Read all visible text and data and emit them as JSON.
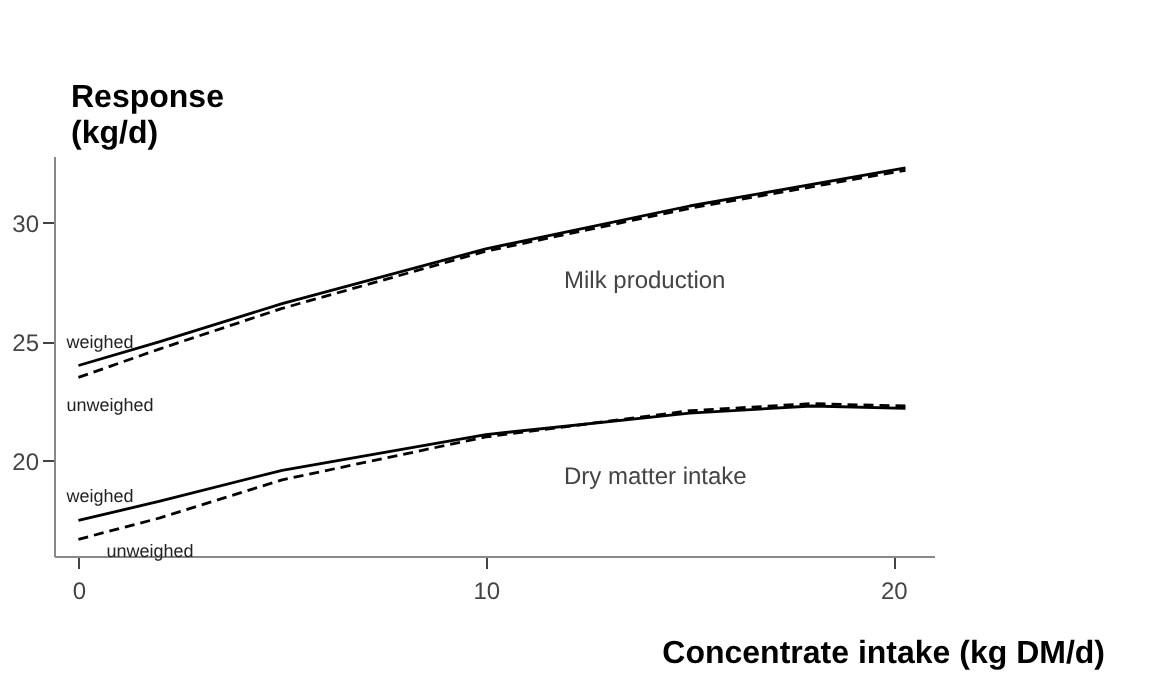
{
  "chart_data": {
    "type": "line",
    "xlabel": "Concentrate intake (kg DM/d)",
    "ylabel": "Response (kg/d)",
    "xlim": [
      -0.6,
      21
    ],
    "xticks": [
      0,
      10,
      20
    ],
    "ylim": [
      16,
      32.8
    ],
    "yticks": [
      20,
      25,
      30
    ],
    "grid": false,
    "marker": "none",
    "series": [
      {
        "name": "weighed",
        "color": "#000000",
        "line_style": "solid",
        "x": [
          0,
          2,
          5,
          10,
          15,
          20.3
        ],
        "values": [
          24.0,
          25.0,
          26.6,
          28.9,
          30.7,
          32.3
        ]
      },
      {
        "name": "unweighed",
        "color": "#000000",
        "line_style": "dashed",
        "x": [
          0,
          2,
          5,
          10,
          15,
          20.3
        ],
        "values": [
          23.5,
          24.7,
          26.4,
          28.8,
          30.6,
          32.2
        ]
      },
      {
        "name": "weighed",
        "color": "#000000",
        "line_style": "solid",
        "x": [
          0,
          2,
          5,
          10,
          15,
          18,
          20.3
        ],
        "values": [
          17.5,
          18.3,
          19.6,
          21.1,
          22.0,
          22.3,
          22.2
        ]
      },
      {
        "name": "unweighed",
        "color": "#000000",
        "line_style": "dashed",
        "x": [
          0,
          2,
          5,
          10,
          15,
          18,
          20.3
        ],
        "values": [
          16.7,
          17.6,
          19.2,
          21.0,
          22.1,
          22.4,
          22.3
        ]
      }
    ],
    "annotations": [
      "Milk production",
      "Dry matter intake"
    ]
  }
}
